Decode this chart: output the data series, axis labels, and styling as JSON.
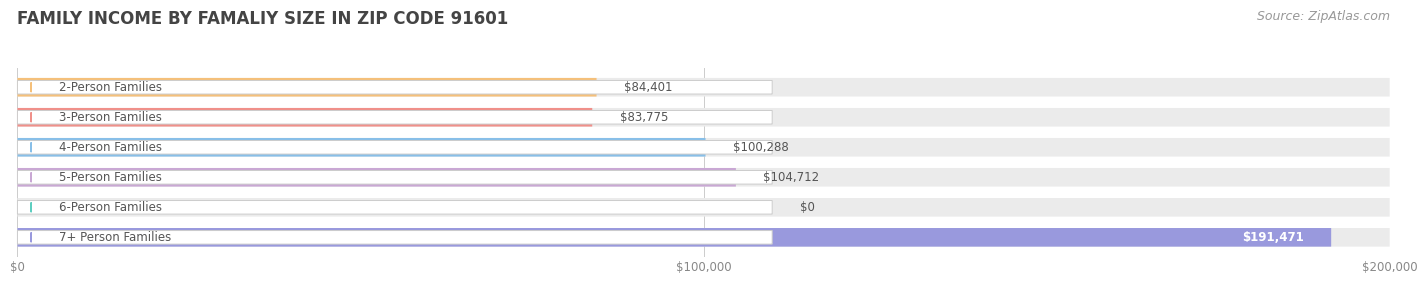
{
  "title": "FAMILY INCOME BY FAMALIY SIZE IN ZIP CODE 91601",
  "source": "Source: ZipAtlas.com",
  "categories": [
    "2-Person Families",
    "3-Person Families",
    "4-Person Families",
    "5-Person Families",
    "6-Person Families",
    "7+ Person Families"
  ],
  "values": [
    84401,
    83775,
    100288,
    104712,
    0,
    191471
  ],
  "bar_colors": [
    "#f5c07a",
    "#f0908a",
    "#88bfe8",
    "#c9a8d4",
    "#5ecec0",
    "#9999dd"
  ],
  "bar_bg_color": "#ebebeb",
  "label_bg_color": "#ffffff",
  "label_text_color": "#555555",
  "value_text_color": "#555555",
  "title_color": "#444444",
  "source_color": "#999999",
  "xlim": [
    0,
    200000
  ],
  "xticks": [
    0,
    100000,
    200000
  ],
  "xtick_labels": [
    "$0",
    "$100,000",
    "$200,000"
  ],
  "fig_bg_color": "#ffffff",
  "title_fontsize": 12,
  "label_fontsize": 8.5,
  "value_fontsize": 8.5,
  "source_fontsize": 9
}
